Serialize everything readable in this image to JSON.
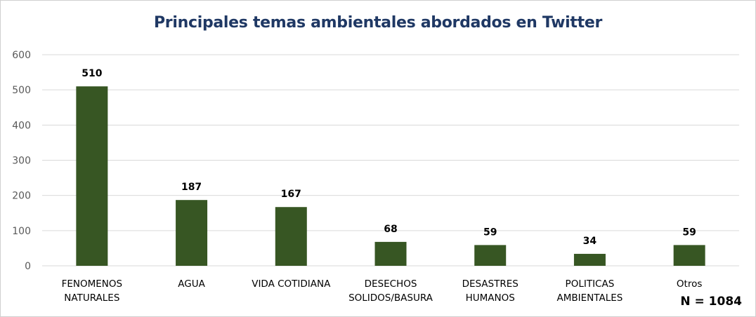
{
  "chart_data": {
    "type": "bar",
    "title": "Principales temas ambientales abordados en Twitter",
    "xlabel": "",
    "ylabel": "",
    "categories": [
      [
        "FENOMENOS",
        "NATURALES"
      ],
      [
        "AGUA"
      ],
      [
        "VIDA COTIDIANA"
      ],
      [
        "DESECHOS",
        "SOLIDOS/BASURA"
      ],
      [
        "DESASTRES",
        "HUMANOS"
      ],
      [
        "POLITICAS",
        "AMBIENTALES"
      ],
      [
        "Otros"
      ]
    ],
    "values": [
      510,
      187,
      167,
      68,
      59,
      34,
      59
    ],
    "data_labels": [
      "510",
      "187",
      "167",
      "68",
      "59",
      "34",
      "59"
    ],
    "ylim": [
      0,
      600
    ],
    "yticks": [
      0,
      100,
      200,
      300,
      400,
      500,
      600
    ],
    "grid": true,
    "legend": "none",
    "bar_color": "#375623",
    "grid_color": "#d9d9d9",
    "title_color": "#1f3864",
    "annotation": "N = 1084"
  }
}
